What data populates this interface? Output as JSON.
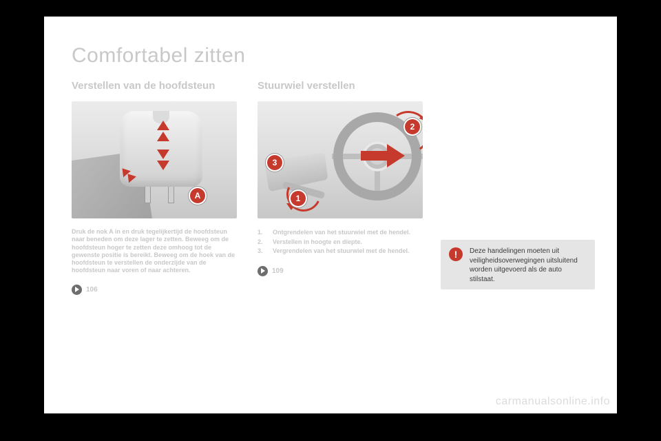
{
  "page": {
    "title": "Comfortabel zitten",
    "watermark": "carmanualsonline.info"
  },
  "headrest": {
    "heading": "Verstellen van de hoofdsteun",
    "badge_label": "A",
    "paragraph": "Druk de nok A in en druk tegelijkertijd de hoofdsteun naar beneden om deze lager te zetten. Beweeg om de hoofdsteun hoger te zetten deze omhoog tot de gewenste positie is bereikt. Beweeg om de hoek van de hoofdsteun te verstellen de onderzijde van de hoofdsteun naar voren of naar achteren.",
    "pageref": "106",
    "figure": {
      "accent_color": "#c63a2d",
      "bg_gradient": [
        "#ececec",
        "#d8d8d8",
        "#c7c7c7"
      ]
    }
  },
  "steering": {
    "heading": "Stuurwiel verstellen",
    "steps": [
      {
        "n": "1.",
        "text": "Ontgrendelen van het stuurwiel met de hendel."
      },
      {
        "n": "2.",
        "text": "Verstellen in hoogte en diepte."
      },
      {
        "n": "3.",
        "text": "Vergrendelen van het stuurwiel met de hendel."
      }
    ],
    "badges": {
      "b1": "1",
      "b2": "2",
      "b3": "3"
    },
    "pageref": "109",
    "figure": {
      "accent_color": "#c63a2d"
    }
  },
  "warning": {
    "icon": "!",
    "text": "Deze handelingen moeten uit veiligheidsoverwegingen uitsluitend worden uitgevoerd als de auto stilstaat."
  },
  "colors": {
    "accent": "#c63a2d",
    "faded_text": "#c8c8c8",
    "warn_bg": "#e5e5e5",
    "warn_text": "#3b3b3b",
    "page_bg": "#ffffff",
    "outer_bg": "#000000"
  }
}
